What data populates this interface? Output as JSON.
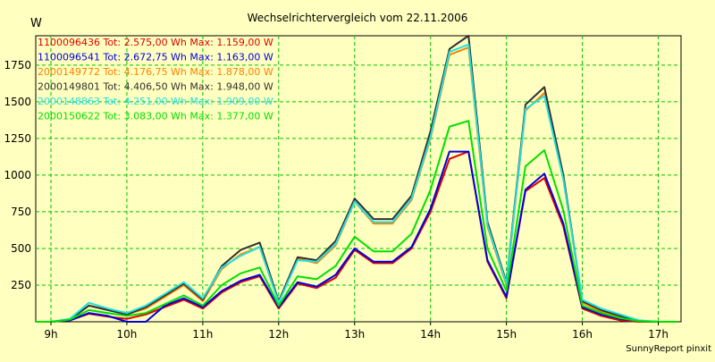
{
  "chart_data": {
    "type": "line",
    "title": "Wechselrichtervergleich vom 22.11.2006",
    "ylabel": "W",
    "xlabel": "",
    "watermark": "SunnyReport pinxit",
    "x_hours": [
      8.8,
      9.0,
      9.25,
      9.5,
      9.75,
      10.0,
      10.25,
      10.5,
      10.75,
      11.0,
      11.25,
      11.5,
      11.75,
      12.0,
      12.25,
      12.5,
      12.75,
      13.0,
      13.25,
      13.5,
      13.75,
      14.0,
      14.25,
      14.5,
      14.75,
      15.0,
      15.25,
      15.5,
      15.75,
      16.0,
      16.25,
      16.5,
      16.75,
      17.0,
      17.25
    ],
    "xlim": [
      8.8,
      17.3
    ],
    "ylim": [
      0,
      1950
    ],
    "x_ticks": [
      9,
      10,
      11,
      12,
      13,
      14,
      15,
      16,
      17
    ],
    "x_tick_labels": [
      "9h",
      "10h",
      "11h",
      "12h",
      "13h",
      "14h",
      "15h",
      "16h",
      "17h"
    ],
    "y_ticks": [
      250,
      500,
      750,
      1000,
      1250,
      1500,
      1750
    ],
    "y_tick_labels": [
      "250",
      "500",
      "750",
      "1000",
      "1250",
      "1500",
      "1750"
    ],
    "grid": true,
    "legend_position": "top-left",
    "series": [
      {
        "name": "1100096436",
        "legend": "1100096436 Tot: 2.575,00 Wh Max: 1.159,00 W",
        "color": "#e00000",
        "values": [
          0,
          0,
          10,
          55,
          35,
          20,
          50,
          100,
          150,
          90,
          200,
          270,
          310,
          90,
          260,
          230,
          300,
          490,
          400,
          400,
          500,
          750,
          1110,
          1160,
          410,
          160,
          890,
          980,
          650,
          90,
          40,
          10,
          0,
          0,
          0
        ]
      },
      {
        "name": "1100096541",
        "legend": "1100096541 Tot: 2.672,75 Wh Max: 1.163,00 W",
        "color": "#0000e0",
        "values": [
          0,
          0,
          10,
          60,
          40,
          0,
          0,
          110,
          160,
          100,
          210,
          280,
          320,
          100,
          270,
          240,
          320,
          500,
          410,
          410,
          510,
          770,
          1160,
          1160,
          420,
          170,
          900,
          1010,
          670,
          100,
          50,
          20,
          5,
          0,
          0
        ]
      },
      {
        "name": "2000149772",
        "legend": "2000149772 Tot: 4.176,75 Wh Max: 1.878,00 W",
        "color": "#ff8000",
        "values": [
          0,
          0,
          15,
          110,
          80,
          50,
          90,
          170,
          250,
          140,
          360,
          460,
          510,
          130,
          430,
          400,
          520,
          820,
          670,
          670,
          830,
          1250,
          1820,
          1870,
          650,
          250,
          1440,
          1560,
          980,
          130,
          70,
          30,
          5,
          0,
          0
        ]
      },
      {
        "name": "2000149801",
        "legend": "2000149801 Tot: 4.406,50 Wh Max: 1.948,00 W",
        "color": "#303030",
        "values": [
          0,
          0,
          15,
          110,
          80,
          50,
          100,
          180,
          260,
          150,
          380,
          490,
          540,
          140,
          440,
          420,
          550,
          840,
          700,
          700,
          860,
          1300,
          1860,
          1950,
          680,
          270,
          1480,
          1600,
          1000,
          140,
          80,
          40,
          5,
          0,
          0
        ]
      },
      {
        "name": "2000148863",
        "legend": "2000148863 Tot: 4.251,00 Wh Max: 1.909,00 W",
        "color": "#20e0e0",
        "values": [
          0,
          0,
          20,
          130,
          90,
          60,
          110,
          190,
          270,
          160,
          370,
          450,
          510,
          130,
          420,
          410,
          530,
          820,
          680,
          680,
          840,
          1260,
          1840,
          1890,
          660,
          260,
          1450,
          1540,
          970,
          150,
          90,
          50,
          10,
          0,
          0
        ]
      },
      {
        "name": "2000150622",
        "legend": "2000150622 Tot: 3.083,00 Wh Max: 1.377,00 W",
        "color": "#00e000",
        "values": [
          0,
          0,
          15,
          80,
          60,
          40,
          60,
          120,
          180,
          110,
          250,
          330,
          370,
          110,
          310,
          290,
          380,
          580,
          480,
          480,
          600,
          900,
          1330,
          1370,
          500,
          210,
          1060,
          1170,
          760,
          110,
          60,
          25,
          5,
          0,
          0
        ]
      }
    ]
  }
}
